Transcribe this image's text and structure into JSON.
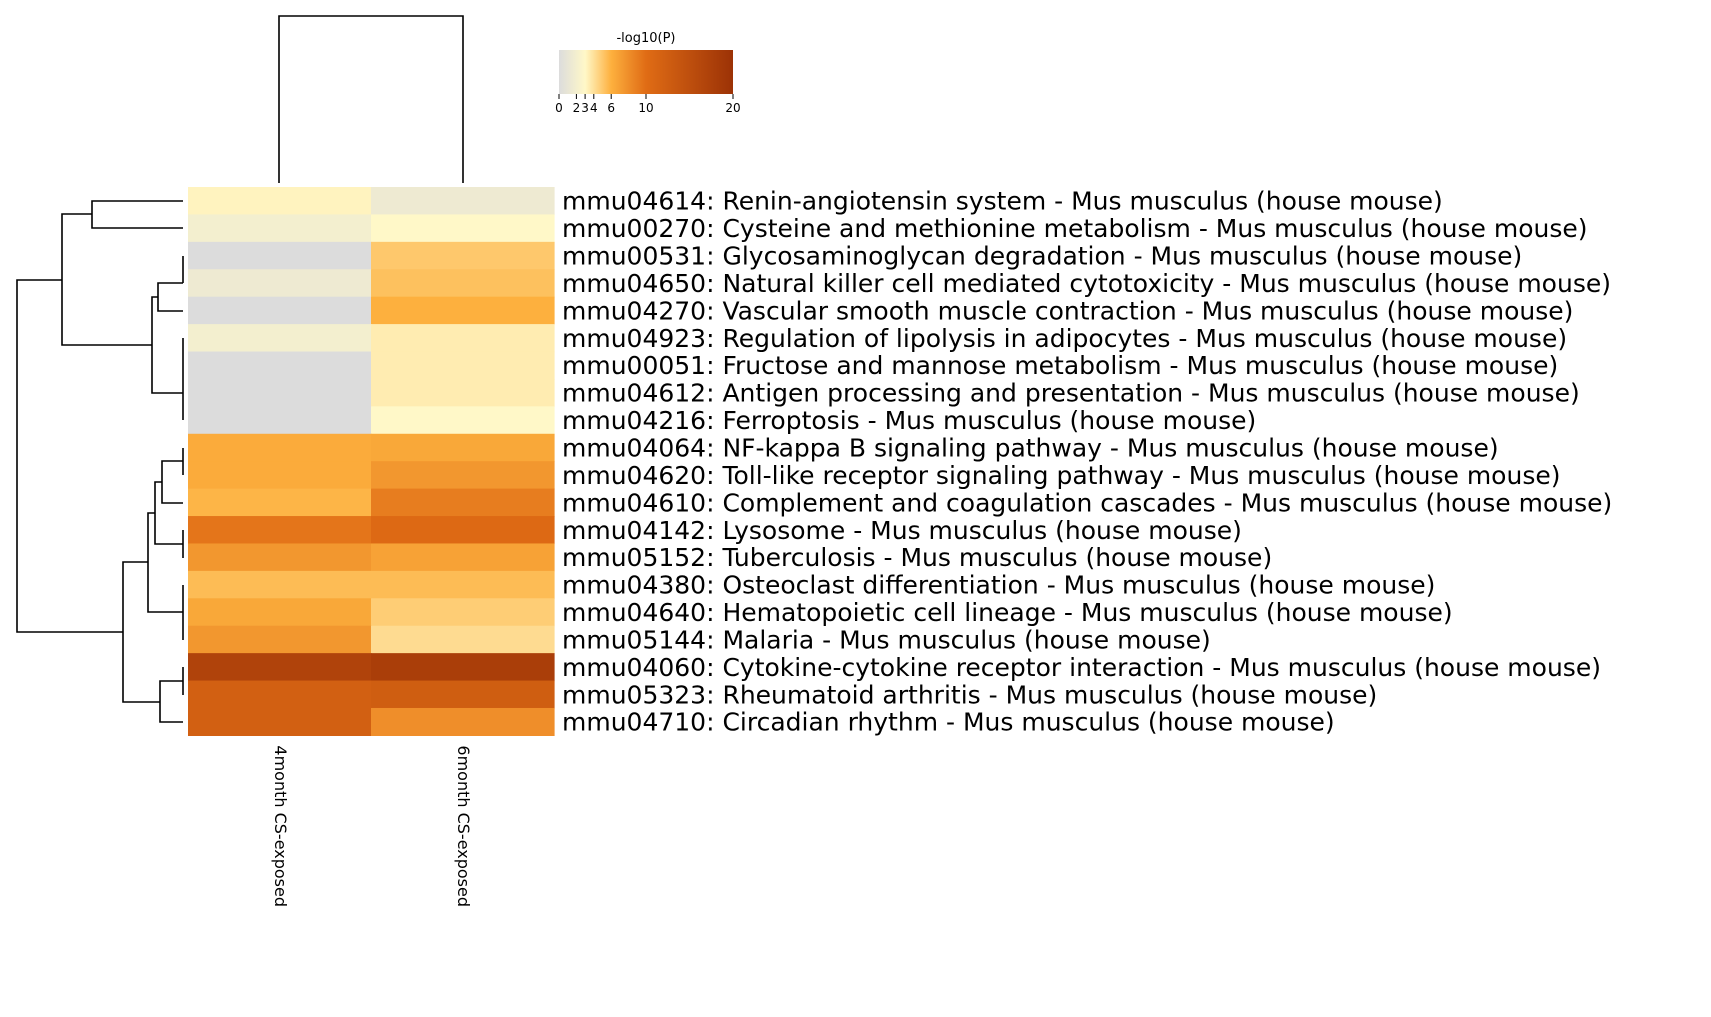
{
  "chart_data": {
    "type": "heatmap",
    "colorbar": {
      "title": "-log10(P)",
      "ticks": [
        "0",
        "2",
        "3",
        "4",
        "6",
        "10",
        "20"
      ],
      "stops": [
        {
          "value": 0,
          "color": "#dcdcdc"
        },
        {
          "value": 3,
          "color": "#fff8c8"
        },
        {
          "value": 6,
          "color": "#fdb03e"
        },
        {
          "value": 10,
          "color": "#e06c15"
        },
        {
          "value": 20,
          "color": "#9c3206"
        }
      ]
    },
    "columns": [
      "4month CS-exposed",
      "6month CS-exposed"
    ],
    "rows": [
      "mmu04614: Renin-angiotensin system - Mus musculus (house mouse)",
      "mmu00270: Cysteine and methionine metabolism - Mus musculus (house mouse)",
      "mmu00531: Glycosaminoglycan degradation - Mus musculus (house mouse)",
      "mmu04650: Natural killer cell mediated cytotoxicity - Mus musculus (house mouse)",
      "mmu04270: Vascular smooth muscle contraction - Mus musculus (house mouse)",
      "mmu04923: Regulation of lipolysis in adipocytes - Mus musculus (house mouse)",
      "mmu00051: Fructose and mannose metabolism - Mus musculus (house mouse)",
      "mmu04612: Antigen processing and presentation - Mus musculus (house mouse)",
      "mmu04216: Ferroptosis - Mus musculus (house mouse)",
      "mmu04064: NF-kappa B signaling pathway - Mus musculus (house mouse)",
      "mmu04620: Toll-like receptor signaling pathway - Mus musculus (house mouse)",
      "mmu04610: Complement and coagulation cascades - Mus musculus (house mouse)",
      "mmu04142: Lysosome - Mus musculus (house mouse)",
      "mmu05152: Tuberculosis - Mus musculus (house mouse)",
      "mmu04380: Osteoclast differentiation - Mus musculus (house mouse)",
      "mmu04640: Hematopoietic cell lineage - Mus musculus (house mouse)",
      "mmu05144: Malaria - Mus musculus (house mouse)",
      "mmu04060: Cytokine-cytokine receptor interaction - Mus musculus (house mouse)",
      "mmu05323: Rheumatoid arthritis - Mus musculus (house mouse)",
      "mmu04710: Circadian rhythm - Mus musculus (house mouse)"
    ],
    "values": [
      [
        3.2,
        1.5
      ],
      [
        2.0,
        3.0
      ],
      [
        0.0,
        5.0
      ],
      [
        1.5,
        5.3
      ],
      [
        0.0,
        6.0
      ],
      [
        2.0,
        3.5
      ],
      [
        0.0,
        3.5
      ],
      [
        0.0,
        3.5
      ],
      [
        0.0,
        3.0
      ],
      [
        6.3,
        6.5
      ],
      [
        6.3,
        7.5
      ],
      [
        5.8,
        9.0
      ],
      [
        9.5,
        10.5
      ],
      [
        7.5,
        6.8
      ],
      [
        5.5,
        5.5
      ],
      [
        6.5,
        4.8
      ],
      [
        7.5,
        4.2
      ],
      [
        17.0,
        18.0
      ],
      [
        12.0,
        12.5
      ],
      [
        12.0,
        8.0
      ]
    ]
  }
}
